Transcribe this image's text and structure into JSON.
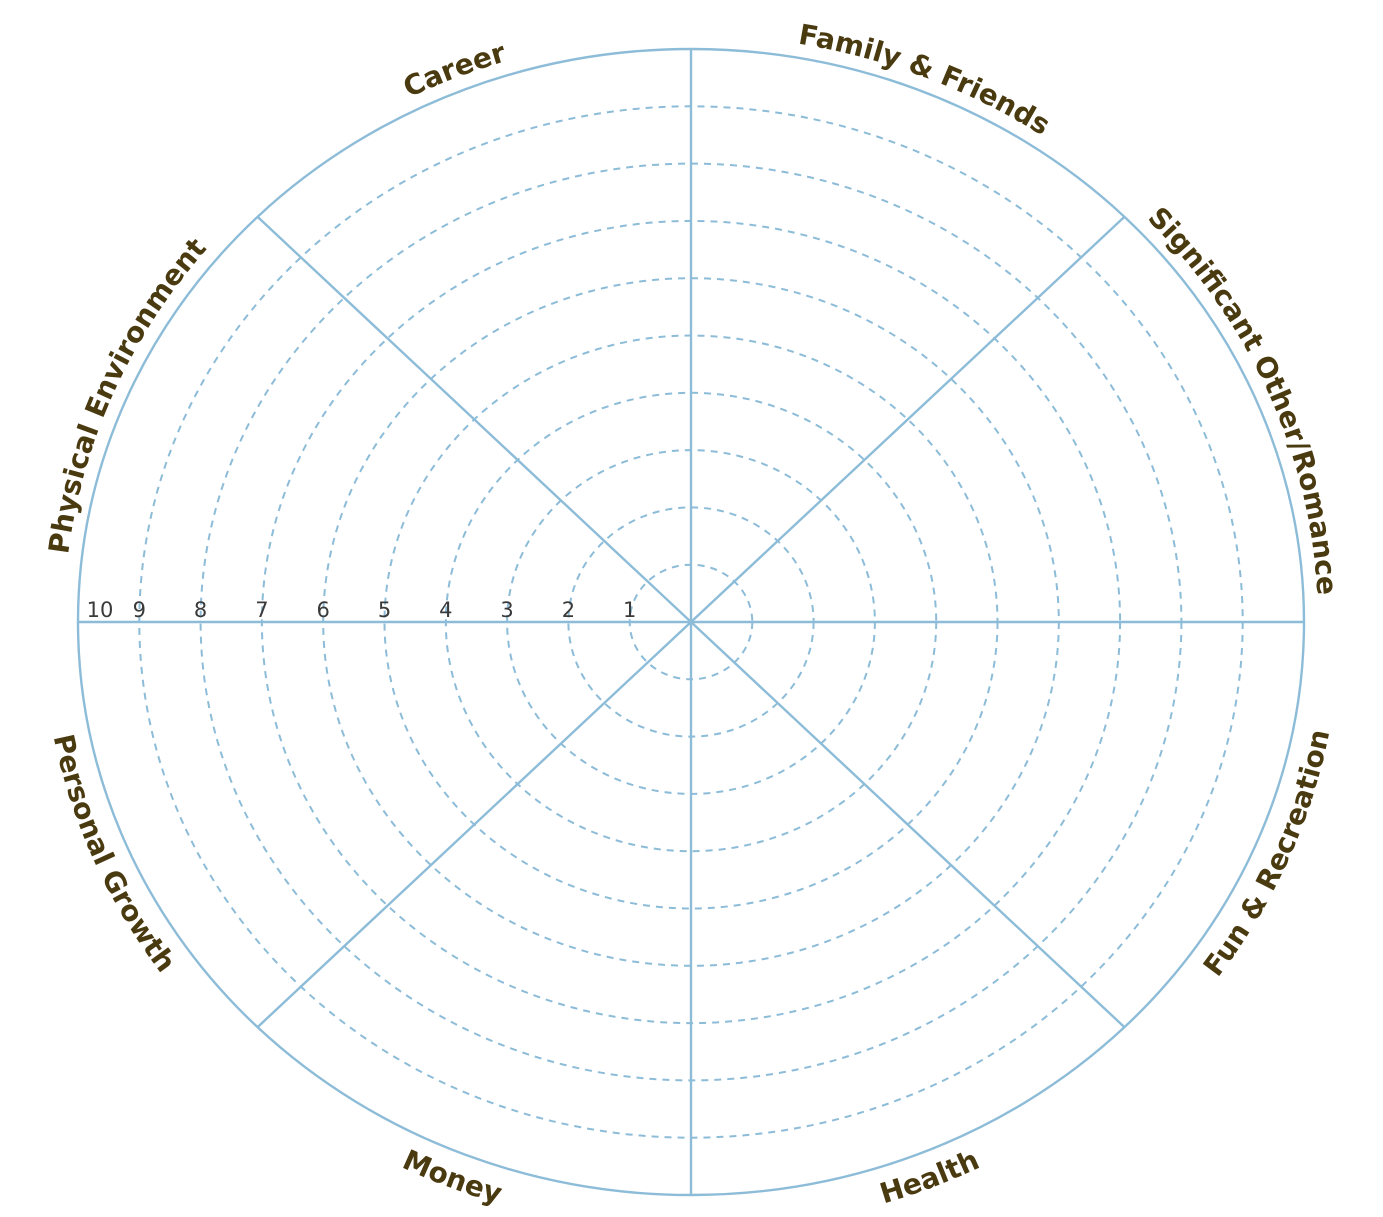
{
  "colors": {
    "line": "#8dbcd8",
    "label": "#4a3a10",
    "scale": "#3a3a3a",
    "background": "#ffffff"
  },
  "scale": {
    "min": 1,
    "max": 10,
    "labels": [
      "1",
      "2",
      "3",
      "4",
      "5",
      "6",
      "7",
      "8",
      "9",
      "10"
    ]
  },
  "categories": [
    "Career",
    "Family & Friends",
    "Significant Other/Romance",
    "Fun & Recreation",
    "Health",
    "Money",
    "Personal Growth",
    "Physical Environment"
  ]
}
